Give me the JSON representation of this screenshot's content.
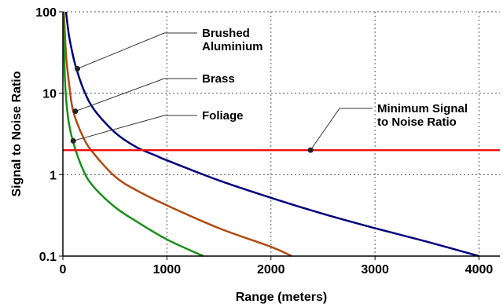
{
  "chart_data": {
    "type": "line",
    "title": "",
    "xlabel": "Range (meters)",
    "ylabel": "Signal to Noise Ratio",
    "xlim": [
      0,
      4200
    ],
    "ylim": [
      0.1,
      100
    ],
    "yscale": "log",
    "grid": true,
    "x_ticks": [
      0,
      1000,
      2000,
      3000,
      4000
    ],
    "x_tick_labels": [
      "0",
      "1000",
      "2000",
      "3000",
      "4000"
    ],
    "y_ticks": [
      0.1,
      1,
      10,
      100
    ],
    "y_tick_labels": [
      "0.1",
      "1",
      "10",
      "100"
    ],
    "series": [
      {
        "name": "Brushed Aluminium",
        "color": "#00007f",
        "x": [
          30,
          60,
          100,
          130,
          200,
          300,
          500,
          700,
          900,
          1000,
          1500,
          2000,
          2500,
          3000,
          3500,
          4000
        ],
        "y": [
          100,
          50,
          28,
          20,
          11,
          6.3,
          3.3,
          2.2,
          1.7,
          1.5,
          0.85,
          0.52,
          0.33,
          0.22,
          0.15,
          0.1
        ]
      },
      {
        "name": "Brass",
        "color": "#b04a10",
        "x": [
          10,
          30,
          60,
          100,
          200,
          300,
          500,
          700,
          1000,
          1500,
          2000,
          2200
        ],
        "y": [
          100,
          30,
          13,
          6,
          2.8,
          1.8,
          0.95,
          0.65,
          0.42,
          0.22,
          0.13,
          0.1
        ]
      },
      {
        "name": "Foliage",
        "color": "#1a8f1a",
        "x": [
          5,
          20,
          50,
          100,
          200,
          300,
          500,
          700,
          1000,
          1350
        ],
        "y": [
          100,
          15,
          5,
          2.5,
          1.1,
          0.7,
          0.4,
          0.27,
          0.16,
          0.1
        ]
      },
      {
        "name": "Minimum Signal to Noise Ratio",
        "color": "#ee1111",
        "x": [
          0,
          4200
        ],
        "y": [
          2,
          2
        ]
      }
    ],
    "annotations": [
      {
        "lines": [
          "Brushed",
          "Aluminium"
        ],
        "point": [
          140,
          20
        ]
      },
      {
        "lines": [
          "Brass"
        ],
        "point": [
          120,
          6
        ]
      },
      {
        "lines": [
          "Foliage"
        ],
        "point": [
          100,
          2.6
        ]
      },
      {
        "lines": [
          "Minimum Signal",
          "to Noise Ratio"
        ],
        "point": [
          2380,
          2
        ]
      }
    ]
  }
}
